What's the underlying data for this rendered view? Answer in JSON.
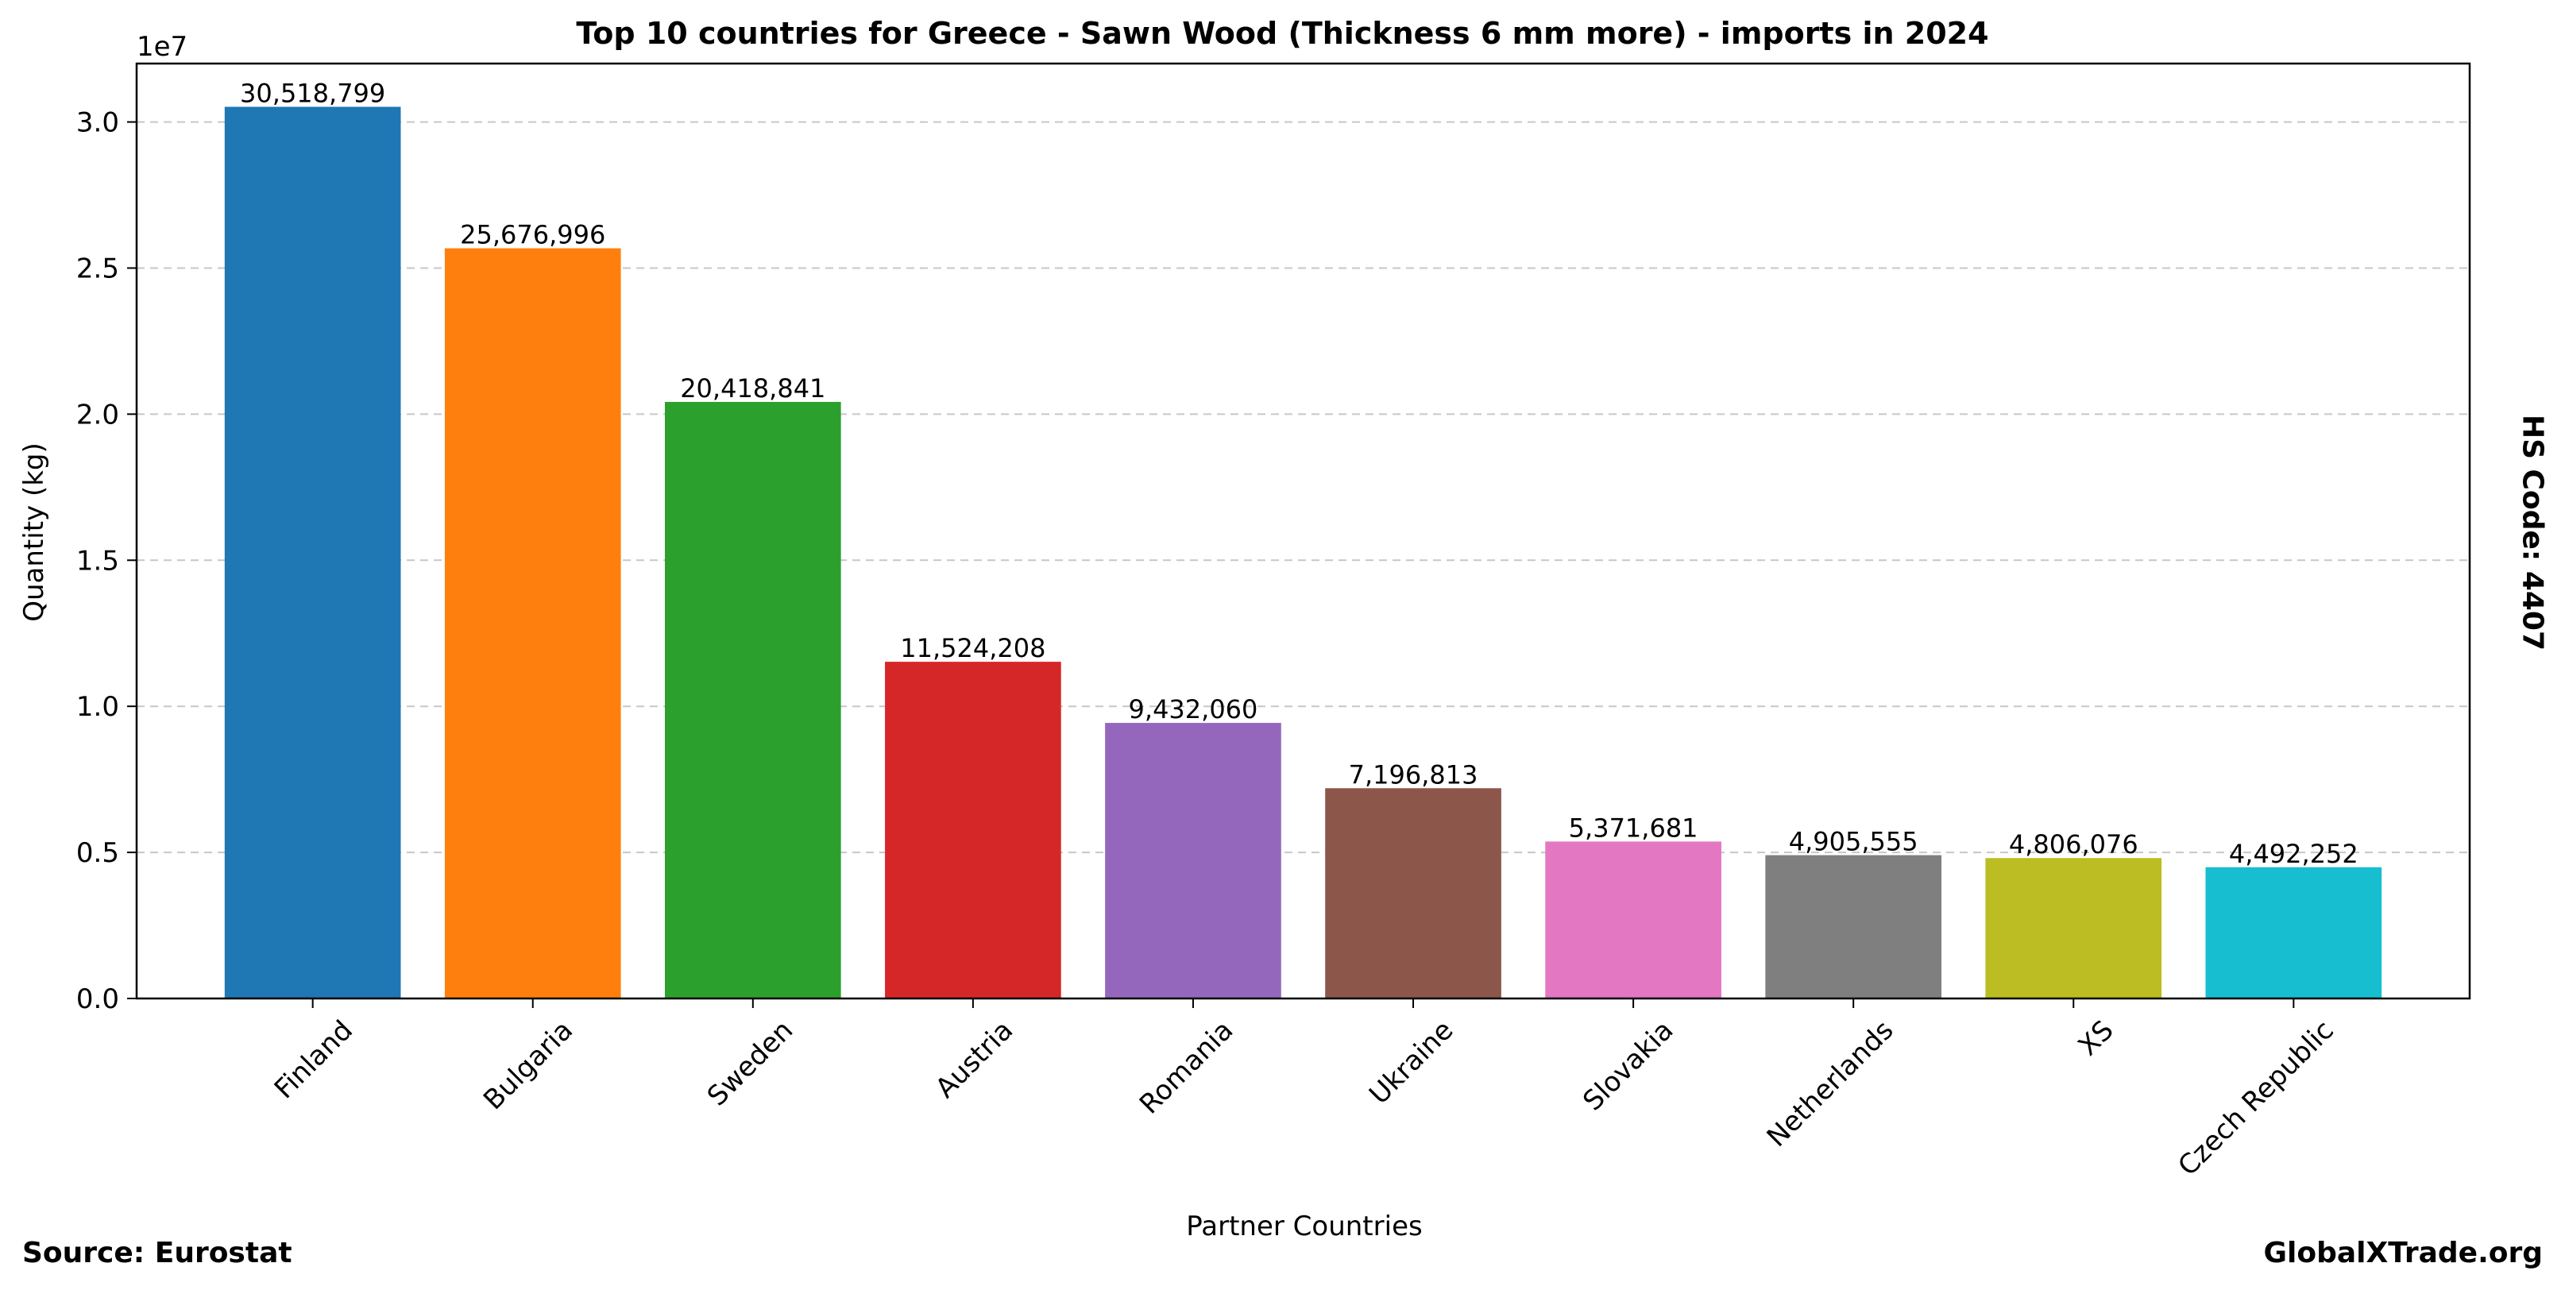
{
  "chart_data": {
    "type": "bar",
    "title": "Top 10 countries for Greece - Sawn Wood (Thickness 6 mm more) - imports in 2024",
    "xlabel": "Partner Countries",
    "ylabel": "Quantity (kg)",
    "y_offset_label": "1e7",
    "categories": [
      "Finland",
      "Bulgaria",
      "Sweden",
      "Austria",
      "Romania",
      "Ukraine",
      "Slovakia",
      "Netherlands",
      "XS",
      "Czech Republic"
    ],
    "values": [
      30518799,
      25676996,
      20418841,
      11524208,
      9432060,
      7196813,
      5371681,
      4905555,
      4806076,
      4492252
    ],
    "value_labels": [
      "30,518,799",
      "25,676,996",
      "20,418,841",
      "11,524,208",
      "9,432,060",
      "7,196,813",
      "5,371,681",
      "4,905,555",
      "4,806,076",
      "4,492,252"
    ],
    "colors": [
      "#1f77b4",
      "#ff7f0e",
      "#2ca02c",
      "#d62728",
      "#9467bd",
      "#8c564b",
      "#e377c2",
      "#7f7f7f",
      "#bcbd22",
      "#17becf"
    ],
    "ylim": [
      0,
      32000000
    ],
    "yticks": [
      0,
      5000000,
      10000000,
      15000000,
      20000000,
      25000000,
      30000000
    ],
    "ytick_labels": [
      "0.0",
      "0.5",
      "1.0",
      "1.5",
      "2.0",
      "2.5",
      "3.0"
    ],
    "grid": "y-dashed",
    "legend": "none"
  },
  "footer": {
    "source": "Source: Eurostat",
    "site": "GlobalXTrade.org",
    "hs_code": "HS Code: 4407"
  }
}
